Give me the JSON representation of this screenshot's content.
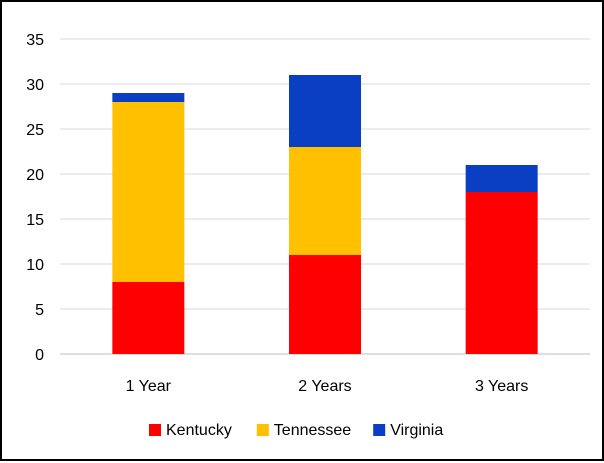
{
  "chart_data": {
    "type": "bar",
    "stacked": true,
    "categories": [
      "1 Year",
      "2 Years",
      "3 Years"
    ],
    "series": [
      {
        "name": "Kentucky",
        "color": "#ff0000",
        "values": [
          8,
          11,
          18
        ]
      },
      {
        "name": "Tennessee",
        "color": "#ffc000",
        "values": [
          20,
          12,
          0
        ]
      },
      {
        "name": "Virginia",
        "color": "#0a3fc4",
        "values": [
          1,
          8,
          3
        ]
      }
    ],
    "ylim": [
      0,
      35
    ],
    "yticks": [
      0,
      5,
      10,
      15,
      20,
      25,
      30,
      35
    ],
    "grid": true,
    "legend": "bottom",
    "title": "",
    "xlabel": "",
    "ylabel": ""
  }
}
